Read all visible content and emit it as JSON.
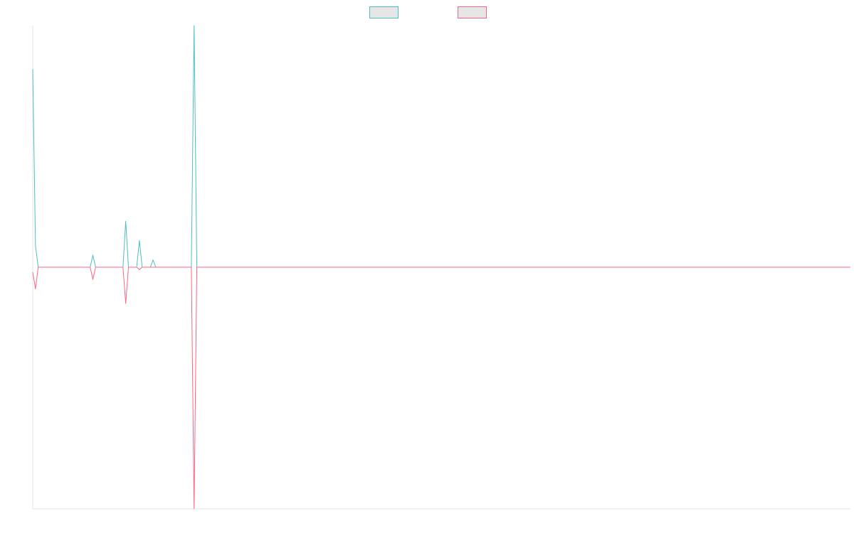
{
  "chart_data": {
    "type": "line",
    "x_count": 300,
    "ylim": [
      -1.0,
      1.0
    ],
    "legend": {
      "placement": "top-center",
      "entries": [
        {
          "series_index": 0,
          "label": ""
        },
        {
          "series_index": 1,
          "label": ""
        }
      ]
    },
    "series": [
      {
        "color": "#4bc0c0",
        "fill": "#e6e6e6",
        "points": [
          [
            0,
            0.82
          ],
          [
            1,
            0.09
          ],
          [
            2,
            0.0
          ],
          [
            21,
            0.0
          ],
          [
            22,
            0.05
          ],
          [
            23,
            0.0
          ],
          [
            33,
            0.0
          ],
          [
            34,
            0.19
          ],
          [
            35,
            0.0
          ],
          [
            38,
            0.0
          ],
          [
            39,
            0.11
          ],
          [
            40,
            0.0
          ],
          [
            43,
            0.0
          ],
          [
            44,
            0.03
          ],
          [
            45,
            0.0
          ],
          [
            58,
            0.0
          ],
          [
            59,
            1.0
          ],
          [
            60,
            0.0
          ],
          [
            299,
            0.0
          ]
        ]
      },
      {
        "color": "#ff6384",
        "fill": "#e6e6e6",
        "points": [
          [
            0,
            -0.02
          ],
          [
            1,
            -0.09
          ],
          [
            2,
            0.0
          ],
          [
            21,
            0.0
          ],
          [
            22,
            -0.05
          ],
          [
            23,
            0.0
          ],
          [
            33,
            0.0
          ],
          [
            34,
            -0.15
          ],
          [
            35,
            0.0
          ],
          [
            38,
            0.0
          ],
          [
            39,
            -0.01
          ],
          [
            40,
            0.0
          ],
          [
            58,
            0.0
          ],
          [
            59,
            -1.0
          ],
          [
            60,
            0.0
          ],
          [
            299,
            0.0
          ]
        ]
      }
    ]
  }
}
